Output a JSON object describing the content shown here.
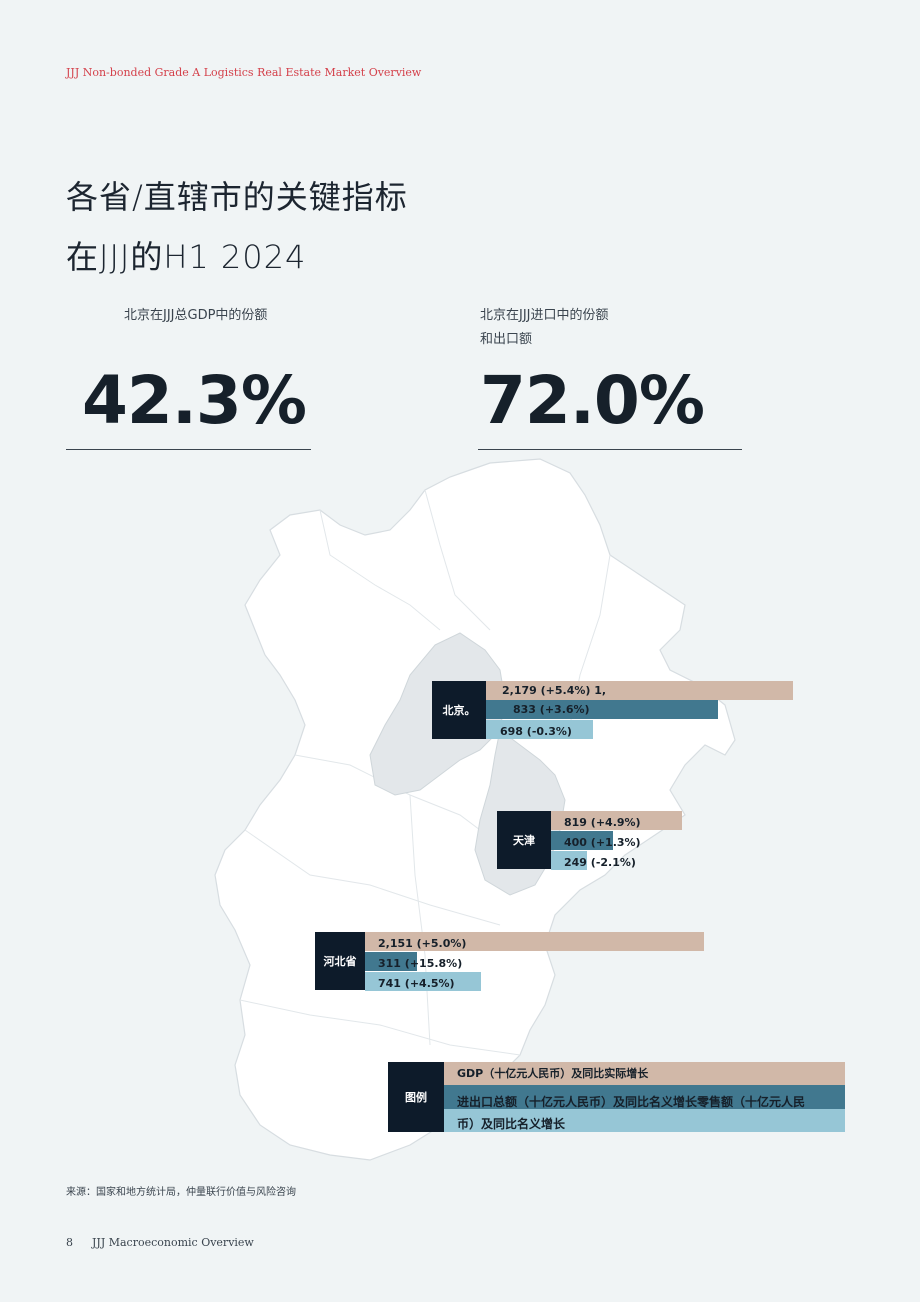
{
  "header": {
    "report_title": "JJJ Non-bonded Grade A Logistics Real Estate Market Overview"
  },
  "title": {
    "line1": "各省/直辖市的关键指标",
    "line2": "在JJJ的H1 2024"
  },
  "kpis": [
    {
      "label_line1": "北京在JJJ总GDP中的份额",
      "label_line2": "",
      "value": "42.3%"
    },
    {
      "label_line1": "北京在JJJ进口中的份额",
      "label_line2": "和出口额",
      "value": "72.0%"
    }
  ],
  "regions": [
    {
      "name": "北京。",
      "gdp": {
        "label": "2,179 (+5.4%) 1,",
        "value": 2179
      },
      "trade": {
        "label": "833 (+3.6%)",
        "value": 1833
      },
      "retail": {
        "label": "698 (-0.3%)",
        "value": 698
      }
    },
    {
      "name": "天津",
      "gdp": {
        "label": "819 (+4.9%)",
        "value": 819
      },
      "trade": {
        "label": "400 (+1.3%)",
        "value": 400
      },
      "retail": {
        "label": "249 (-2.1%)",
        "value": 249
      }
    },
    {
      "name": "河北省",
      "gdp": {
        "label": "2,151 (+5.0%)",
        "value": 2151
      },
      "trade": {
        "label": "311 (+15.8%)",
        "value": 311
      },
      "retail": {
        "label": "741 (+4.5%)",
        "value": 741
      }
    }
  ],
  "legend": {
    "title": "图例",
    "gdp_label": "GDP（十亿元人民币）及同比实际增长",
    "trade_retail_line1": "进出口总额（十亿元人民币）及同比名义增长零售额（十亿元人民",
    "trade_retail_line2": "币）及同比名义增长"
  },
  "colors": {
    "gdp": "#d1b8a8",
    "trade": "#41788f",
    "retail": "#96c6d6",
    "box": "#0d1b2a",
    "accent": "#d4414b",
    "map_fill": "#ffffff",
    "map_highlight": "#e3e7ea"
  },
  "source": "来源：国家和地方统计局，仲量联行价值与风险咨询",
  "footer": {
    "page_number": "8",
    "section": "JJJ Macroeconomic Overview"
  }
}
